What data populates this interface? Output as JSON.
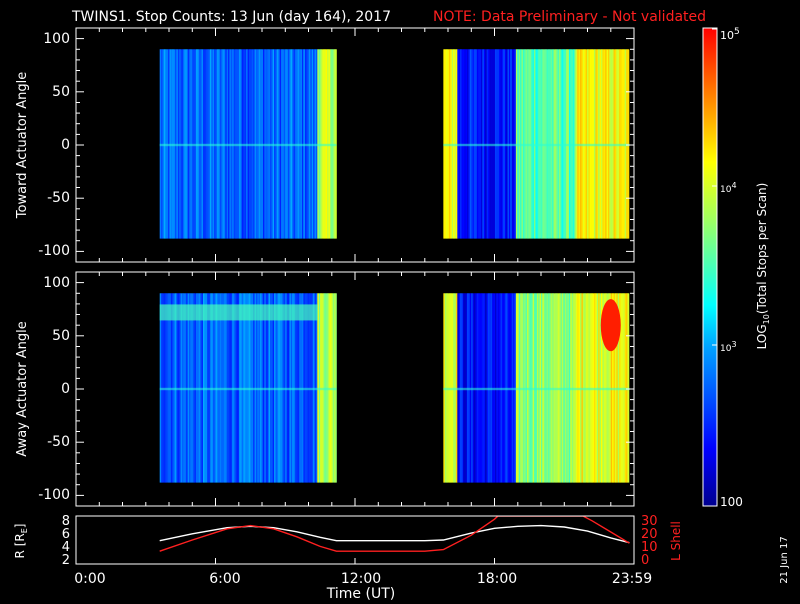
{
  "header": {
    "title": "TWINS1. Stop Counts: 13 Jun (day 164), 2017",
    "note": "NOTE: Data Preliminary - Not validated"
  },
  "panels": {
    "toward": {
      "ylabel": "Toward Actuator Angle",
      "yticks": [
        "100",
        "50",
        "0",
        "-50",
        "-100"
      ]
    },
    "away": {
      "ylabel": "Away Actuator Angle",
      "yticks": [
        "100",
        "50",
        "0",
        "-50",
        "-100"
      ]
    },
    "orbit": {
      "ylabel_left": "R [R",
      "ylabel_left_sub": "E",
      "ylabel_left_end": "]",
      "yticks_left": [
        "8",
        "6",
        "4",
        "2"
      ],
      "ylabel_right": "L Shell",
      "yticks_right": [
        "30",
        "20",
        "10",
        "0"
      ]
    }
  },
  "xaxis": {
    "label": "Time (UT)",
    "ticks": [
      "0:00",
      "6:00",
      "12:00",
      "18:00",
      "23:59"
    ]
  },
  "colorbar": {
    "label": "LOG10(Total Stops per Scan)",
    "label_prefix": "LOG",
    "label_sub": "10",
    "label_suffix": "(Total Stops per Scan)",
    "ticks": {
      "top_base": "10",
      "top_exp": "5",
      "mid1_base": "10",
      "mid1_exp": "4",
      "mid2_base": "10",
      "mid2_exp": "3",
      "bottom": "100"
    }
  },
  "datestamp": "21 Jun 17",
  "colors": {
    "background": "#000000",
    "axes": "#ffffff",
    "note": "#ff2020",
    "l_shell_line": "#ff2020",
    "r_line": "#ffffff"
  },
  "chart_data": [
    {
      "type": "heatmap",
      "name": "toward",
      "xlabel": "Time (UT)",
      "ylabel": "Toward Actuator Angle",
      "xlim": [
        0,
        24
      ],
      "ylim": [
        -110,
        110
      ],
      "angle_range": [
        -88,
        90
      ],
      "colorscale": "rainbow",
      "color_range_log10": [
        2,
        5
      ],
      "data_intervals_hours": [
        [
          3.6,
          11.2
        ],
        [
          15.8,
          23.8
        ]
      ],
      "segments": [
        {
          "start": 3.6,
          "end": 10.4,
          "log10_level": 2.75
        },
        {
          "start": 10.4,
          "end": 11.2,
          "log10_level": 3.9
        },
        {
          "start": 15.8,
          "end": 16.4,
          "log10_level": 4.1
        },
        {
          "start": 16.4,
          "end": 18.9,
          "log10_level": 2.45
        },
        {
          "start": 18.9,
          "end": 21.5,
          "log10_level": 3.55
        },
        {
          "start": 21.5,
          "end": 23.8,
          "log10_level": 4.1
        }
      ]
    },
    {
      "type": "heatmap",
      "name": "away",
      "xlabel": "Time (UT)",
      "ylabel": "Away Actuator Angle",
      "xlim": [
        0,
        24
      ],
      "ylim": [
        -110,
        110
      ],
      "angle_range": [
        -88,
        90
      ],
      "colorscale": "rainbow",
      "color_range_log10": [
        2,
        5
      ],
      "data_intervals_hours": [
        [
          3.6,
          11.2
        ],
        [
          15.8,
          23.8
        ]
      ],
      "segments": [
        {
          "start": 3.6,
          "end": 10.4,
          "log10_level": 2.75
        },
        {
          "start": 10.4,
          "end": 11.2,
          "log10_level": 3.9
        },
        {
          "start": 15.8,
          "end": 16.4,
          "log10_level": 4.1
        },
        {
          "start": 16.4,
          "end": 18.9,
          "log10_level": 2.4
        },
        {
          "start": 18.9,
          "end": 21.5,
          "log10_level": 3.75
        },
        {
          "start": 21.5,
          "end": 23.8,
          "log10_level": 4.1
        }
      ],
      "features": [
        {
          "kind": "band",
          "start": 3.6,
          "end": 10.4,
          "angle": 72,
          "log10_level": 3.5
        },
        {
          "kind": "blob",
          "time": 23.0,
          "angle": 60,
          "log10_level": 4.9
        }
      ]
    },
    {
      "type": "line",
      "name": "orbit",
      "xlabel": "Time (UT)",
      "xlim": [
        0,
        24
      ],
      "left_axis": {
        "label": "R [RE]",
        "ylim": [
          1.5,
          8.5
        ]
      },
      "right_axis": {
        "label": "L Shell",
        "ylim": [
          0,
          30
        ]
      },
      "series": [
        {
          "name": "R [RE]",
          "axis": "left",
          "color": "#ffffff",
          "x": [
            3.6,
            5,
            6.5,
            7.5,
            8.5,
            9.5,
            10.5,
            11.2,
            12,
            13.5,
            15,
            15.8,
            17,
            18,
            19,
            20,
            21,
            22,
            23,
            23.8
          ],
          "y": [
            4.9,
            5.9,
            6.8,
            7.0,
            6.8,
            6.2,
            5.4,
            4.9,
            4.9,
            4.9,
            4.9,
            5.0,
            6.0,
            6.7,
            7.0,
            7.1,
            6.9,
            6.3,
            5.3,
            4.6
          ]
        },
        {
          "name": "L Shell",
          "axis": "right",
          "color": "#ff2020",
          "x": [
            3.6,
            5,
            6.5,
            7.5,
            8.5,
            9.5,
            10.5,
            11.2,
            12,
            13.5,
            15,
            15.8,
            17,
            18,
            18.15,
            21.8,
            22.2,
            23,
            23.8
          ],
          "y": [
            8,
            15,
            22,
            24,
            22,
            17,
            11,
            8,
            8,
            8,
            8,
            9,
            18,
            28,
            30,
            30,
            27,
            20,
            13
          ]
        }
      ]
    }
  ]
}
